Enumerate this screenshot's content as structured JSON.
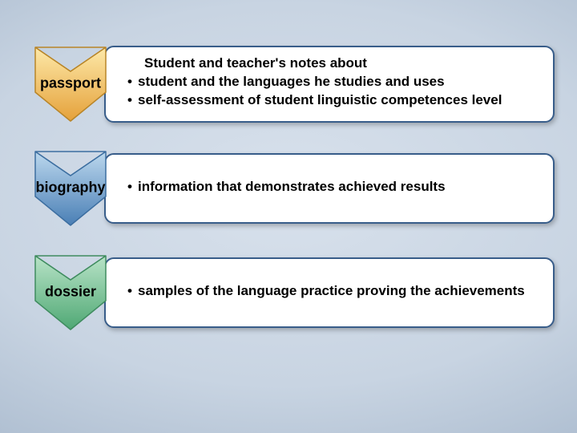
{
  "slide": {
    "background_inner": "#d8e1ec",
    "background_outer": "#7e93aa",
    "card_border": "#385d8a",
    "card_bg": "#ffffff",
    "text_color": "#000000",
    "rows": [
      {
        "label": "passport",
        "label_fontsize": 18,
        "arrow_gradient_top": "#fde9a9",
        "arrow_gradient_bottom": "#e5a13a",
        "arrow_stroke": "#b88528",
        "heading": "Student and teacher's notes about",
        "bullets": [
          "student and the languages he studies and uses",
          "self-assessment of student linguistic competences level"
        ]
      },
      {
        "label": "biography",
        "label_fontsize": 18,
        "arrow_gradient_top": "#bcd8ee",
        "arrow_gradient_bottom": "#4a7fb5",
        "arrow_stroke": "#3c6ea0",
        "heading": "",
        "bullets": [
          "information that demonstrates achieved results"
        ]
      },
      {
        "label": "dossier",
        "label_fontsize": 18,
        "arrow_gradient_top": "#b8e3c7",
        "arrow_gradient_bottom": "#4fa874",
        "arrow_stroke": "#3f8c5f",
        "heading": "",
        "bullets": [
          "samples of the language practice proving the achievements"
        ]
      }
    ]
  }
}
